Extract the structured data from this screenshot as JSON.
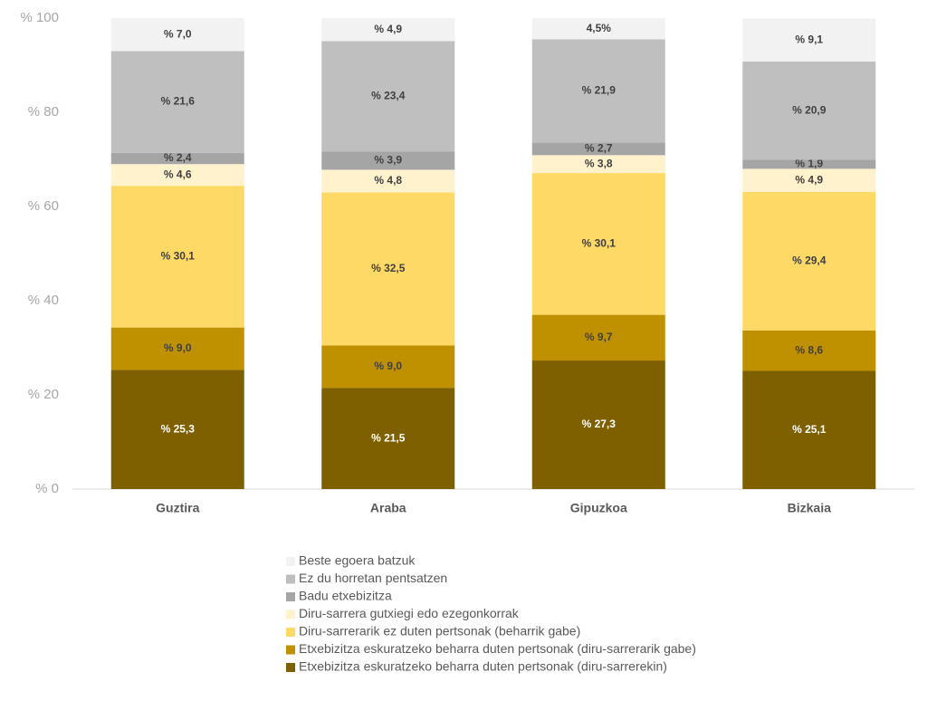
{
  "chart_data": {
    "type": "stacked_bar",
    "categories": [
      "Guztira",
      "Araba",
      "Gipuzkoa",
      "Bizkaia"
    ],
    "series": [
      {
        "name": "Etxebizitza eskuratzeko beharra duten pertsonak (diru-sarrerekin)",
        "color": "#7f6000",
        "values": [
          25.3,
          21.5,
          27.3,
          25.1
        ],
        "value_labels": [
          "% 25,3",
          "% 21,5",
          "% 27,3",
          "% 25,1"
        ]
      },
      {
        "name": "Etxebizitza eskuratzeko beharra duten pertsonak (diru-sarrerarik gabe)",
        "color": "#bf9000",
        "values": [
          9.0,
          9.0,
          9.7,
          8.6
        ],
        "value_labels": [
          "% 9,0",
          "% 9,0",
          "% 9,7",
          "% 8,6"
        ]
      },
      {
        "name": "Diru-sarrerarik ez duten pertsonak (beharrik gabe)",
        "color": "#ffd966",
        "values": [
          30.1,
          32.5,
          30.1,
          29.4
        ],
        "value_labels": [
          "% 30,1",
          "% 32,5",
          "% 30,1",
          "% 29,4"
        ]
      },
      {
        "name": "Diru-sarrera gutxiegi edo ezegonkorrak",
        "color": "#fff2cc",
        "values": [
          4.6,
          4.8,
          3.8,
          4.9
        ],
        "value_labels": [
          "% 4,6",
          "% 4,8",
          "% 3,8",
          "% 4,9"
        ]
      },
      {
        "name": "Badu etxebizitza",
        "color": "#a5a5a5",
        "values": [
          2.4,
          3.9,
          2.7,
          1.9
        ],
        "value_labels": [
          "% 2,4",
          "% 3,9",
          "% 2,7",
          "% 1,9"
        ]
      },
      {
        "name": "Ez du horretan pentsatzen",
        "color": "#bfbfbf",
        "values": [
          21.6,
          23.4,
          21.9,
          20.9
        ],
        "value_labels": [
          "% 21,6",
          "% 23,4",
          "% 21,9",
          "% 20,9"
        ]
      },
      {
        "name": "Beste egoera batzuk",
        "color": "#f2f2f2",
        "values": [
          7.0,
          4.9,
          4.5,
          9.1
        ],
        "value_labels": [
          "% 7,0",
          "% 4,9",
          "4,5%",
          "% 9,1"
        ]
      }
    ],
    "ylim": [
      0,
      100
    ],
    "yticks": [
      {
        "value": 0,
        "label": "% 0"
      },
      {
        "value": 20,
        "label": "% 20"
      },
      {
        "value": 40,
        "label": "% 40"
      },
      {
        "value": 60,
        "label": "% 60"
      },
      {
        "value": 80,
        "label": "% 80"
      },
      {
        "value": 100,
        "label": "% 100"
      }
    ],
    "legend": "bottom"
  }
}
